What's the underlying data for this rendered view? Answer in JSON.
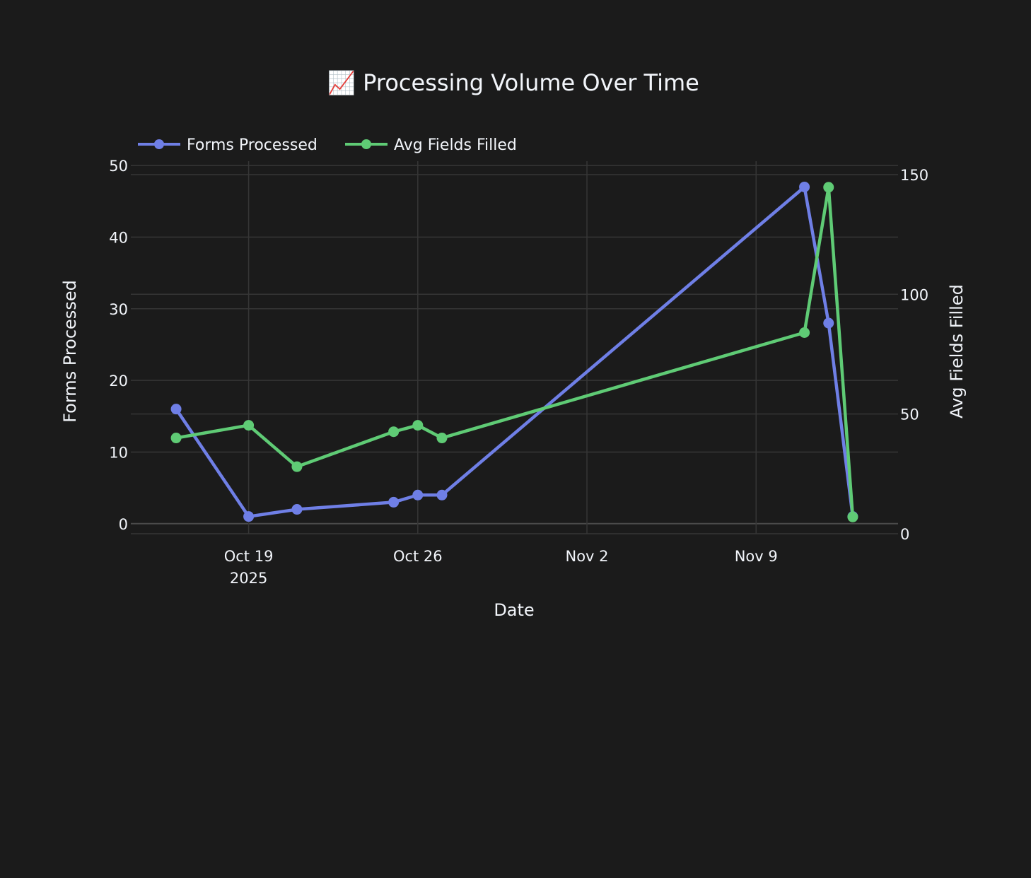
{
  "chart_data": {
    "type": "line",
    "title": "📈 Processing Volume Over Time",
    "xlabel": "Date",
    "ylabel": "Forms Processed",
    "y2label": "Avg Fields Filled",
    "x": [
      "2025-10-16",
      "2025-10-19",
      "2025-10-21",
      "2025-10-25",
      "2025-10-26",
      "2025-10-27",
      "2025-11-11",
      "2025-11-12",
      "2025-11-13"
    ],
    "xlim": [
      "2025-10-14T03:00",
      "2025-11-14T21:00"
    ],
    "xticks": [
      {
        "date": "2025-10-19",
        "label": "Oct 19",
        "sublabel": "2025"
      },
      {
        "date": "2025-10-26",
        "label": "Oct 26"
      },
      {
        "date": "2025-11-02",
        "label": "Nov 2"
      },
      {
        "date": "2025-11-09",
        "label": "Nov 9"
      }
    ],
    "ylim": [
      -1.4,
      50.6
    ],
    "yticks": [
      0,
      10,
      20,
      30,
      40,
      50
    ],
    "y2lim": [
      0,
      155.6
    ],
    "y2ticks": [
      0,
      50,
      100,
      150
    ],
    "grid": true,
    "legend_placement": "top-left",
    "series": [
      {
        "name": "Forms Processed",
        "axis": "y",
        "color": "#6f7fe6",
        "values": [
          16,
          1,
          2,
          3,
          4,
          4,
          47,
          28,
          1
        ]
      },
      {
        "name": "Avg Fields Filled",
        "axis": "y2",
        "color": "#5fcb75",
        "values": [
          40,
          45.3,
          28,
          42.6,
          45.3,
          40,
          84,
          144.7,
          7
        ]
      }
    ]
  }
}
